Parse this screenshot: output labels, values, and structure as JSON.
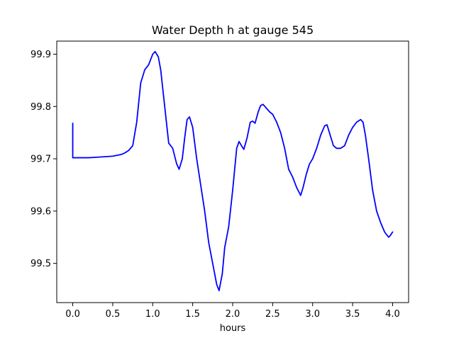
{
  "chart_data": {
    "type": "line",
    "title": "Water Depth h at gauge 545",
    "xlabel": "hours",
    "ylabel": "",
    "xlim": [
      -0.2,
      4.2
    ],
    "ylim": [
      99.425,
      99.925
    ],
    "grid": false,
    "legend": "none",
    "xticks": [
      0.0,
      0.5,
      1.0,
      1.5,
      2.0,
      2.5,
      3.0,
      3.5,
      4.0
    ],
    "xtick_labels": [
      "0.0",
      "0.5",
      "1.0",
      "1.5",
      "2.0",
      "2.5",
      "3.0",
      "3.5",
      "4.0"
    ],
    "yticks": [
      99.5,
      99.6,
      99.7,
      99.8,
      99.9
    ],
    "ytick_labels": [
      "99.5",
      "99.6",
      "99.7",
      "99.8",
      "99.9"
    ],
    "colors": {
      "line": "#0000ff",
      "axes": "#000000",
      "background": "#ffffff"
    },
    "series": [
      {
        "x": [
          0.0,
          0.0,
          0.001,
          0.1,
          0.2,
          0.3,
          0.4,
          0.5,
          0.6,
          0.65,
          0.7,
          0.75,
          0.8,
          0.85,
          0.9,
          0.95,
          1.0,
          1.03,
          1.07,
          1.1,
          1.15,
          1.2,
          1.25,
          1.3,
          1.33,
          1.37,
          1.4,
          1.43,
          1.46,
          1.5,
          1.55,
          1.6,
          1.65,
          1.7,
          1.75,
          1.8,
          1.83,
          1.87,
          1.9,
          1.95,
          2.0,
          2.05,
          2.08,
          2.11,
          2.14,
          2.18,
          2.22,
          2.25,
          2.28,
          2.32,
          2.35,
          2.38,
          2.42,
          2.46,
          2.5,
          2.55,
          2.6,
          2.65,
          2.7,
          2.75,
          2.8,
          2.85,
          2.88,
          2.92,
          2.96,
          3.0,
          3.05,
          3.1,
          3.15,
          3.18,
          3.22,
          3.26,
          3.3,
          3.35,
          3.4,
          3.45,
          3.5,
          3.55,
          3.6,
          3.63,
          3.66,
          3.7,
          3.75,
          3.8,
          3.85,
          3.9,
          3.95,
          3.97,
          4.0
        ],
        "y": [
          99.768,
          99.702,
          99.702,
          99.702,
          99.702,
          99.703,
          99.704,
          99.705,
          99.708,
          99.711,
          99.716,
          99.725,
          99.77,
          99.845,
          99.87,
          99.88,
          99.9,
          99.905,
          99.895,
          99.87,
          99.8,
          99.73,
          99.72,
          99.69,
          99.68,
          99.7,
          99.74,
          99.775,
          99.78,
          99.76,
          99.7,
          99.65,
          99.6,
          99.54,
          99.5,
          99.46,
          99.448,
          99.48,
          99.53,
          99.57,
          99.64,
          99.72,
          99.733,
          99.725,
          99.718,
          99.74,
          99.77,
          99.772,
          99.768,
          99.79,
          99.802,
          99.804,
          99.797,
          99.79,
          99.785,
          99.77,
          99.75,
          99.72,
          99.68,
          99.665,
          99.645,
          99.63,
          99.645,
          99.67,
          99.69,
          99.7,
          99.72,
          99.745,
          99.763,
          99.765,
          99.745,
          99.725,
          99.72,
          99.72,
          99.725,
          99.745,
          99.76,
          99.77,
          99.775,
          99.77,
          99.745,
          99.7,
          99.64,
          99.6,
          99.578,
          99.56,
          99.55,
          99.553,
          99.56
        ]
      }
    ]
  }
}
